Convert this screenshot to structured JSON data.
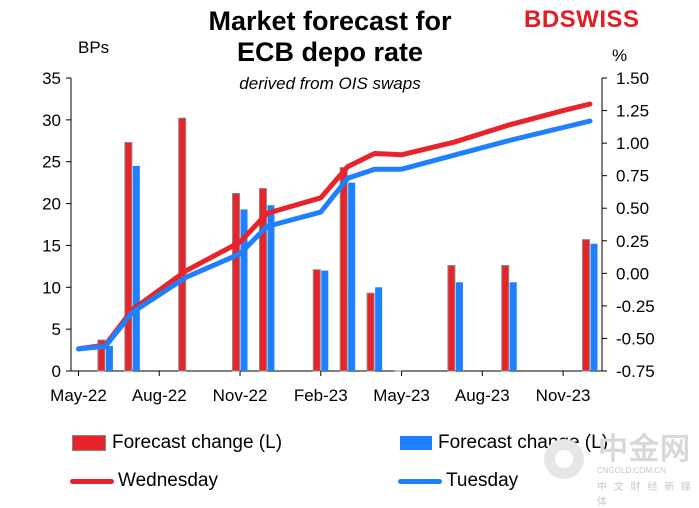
{
  "header": {
    "title_line1": "Market forecast for",
    "title_line2": "ECB depo rate",
    "subtitle": "derived from OIS swaps",
    "brand": "BDSWISS",
    "left_unit": "BPs",
    "right_unit": "%"
  },
  "watermark": {
    "logo_text": "中金网",
    "site": "CNGOLD.COM.CN",
    "tagline": "中 文 财 经 新 媒 体"
  },
  "colors": {
    "forecast_change_l": "#e8242a",
    "tuesday_bar": "#1e7fff",
    "wednesday_line": "#e8242a",
    "tuesday_line": "#1e7fff"
  },
  "legend": [
    {
      "label": "Forecast change (L)"
    },
    {
      "label": "Forecast change (L)"
    },
    {
      "label": "Wednesday"
    },
    {
      "label": "Tuesday"
    }
  ],
  "chart_data": {
    "type": "bar+line",
    "title": "Market forecast for ECB depo rate",
    "subtitle": "derived from OIS swaps",
    "left_axis": {
      "label": "BPs",
      "ylim": [
        0,
        35
      ],
      "ticks": [
        "0",
        "5",
        "10",
        "15",
        "20",
        "25",
        "30",
        "35"
      ]
    },
    "right_axis": {
      "label": "%",
      "ylim": [
        -0.75,
        1.5
      ],
      "ticks": [
        "-0.75",
        "-0.50",
        "-0.25",
        "0.00",
        "0.25",
        "0.50",
        "0.75",
        "1.00",
        "1.25",
        "1.50"
      ]
    },
    "x_axis": {
      "range_months": [
        0,
        19
      ],
      "ticks": [
        {
          "label": "May-22",
          "m": 0
        },
        {
          "label": "Aug-22",
          "m": 3
        },
        {
          "label": "Nov-22",
          "m": 6
        },
        {
          "label": "Feb-23",
          "m": 9
        },
        {
          "label": "May-23",
          "m": 12
        },
        {
          "label": "Aug-23",
          "m": 15
        },
        {
          "label": "Nov-23",
          "m": 18
        }
      ]
    },
    "bars": {
      "months": [
        1,
        2,
        4,
        6,
        7,
        9,
        10,
        11,
        12,
        14,
        16,
        19
      ],
      "series": [
        {
          "name": "Forecast change (L) - Wednesday",
          "values": [
            3.7,
            27.3,
            30.2,
            21.2,
            21.8,
            12.1,
            24.3,
            9.3,
            0,
            12.6,
            12.6,
            15.7
          ]
        },
        {
          "name": "Forecast change (L) - Tuesday",
          "values": [
            3.0,
            24.5,
            0,
            19.3,
            19.8,
            12.0,
            22.5,
            10.0,
            0,
            10.6,
            10.6,
            15.2
          ]
        }
      ]
    },
    "lines": {
      "x_months": [
        0,
        1,
        2,
        4,
        6,
        7,
        9,
        10,
        11,
        12,
        14,
        16,
        18,
        19
      ],
      "series": [
        {
          "name": "Wednesday",
          "values": [
            -0.58,
            -0.55,
            -0.28,
            0.02,
            0.24,
            0.46,
            0.58,
            0.82,
            0.92,
            0.91,
            1.01,
            1.14,
            1.25,
            1.3
          ]
        },
        {
          "name": "Tuesday",
          "values": [
            -0.58,
            -0.56,
            -0.3,
            -0.03,
            0.15,
            0.36,
            0.47,
            0.73,
            0.8,
            0.8,
            0.91,
            1.02,
            1.12,
            1.17
          ]
        }
      ]
    }
  }
}
